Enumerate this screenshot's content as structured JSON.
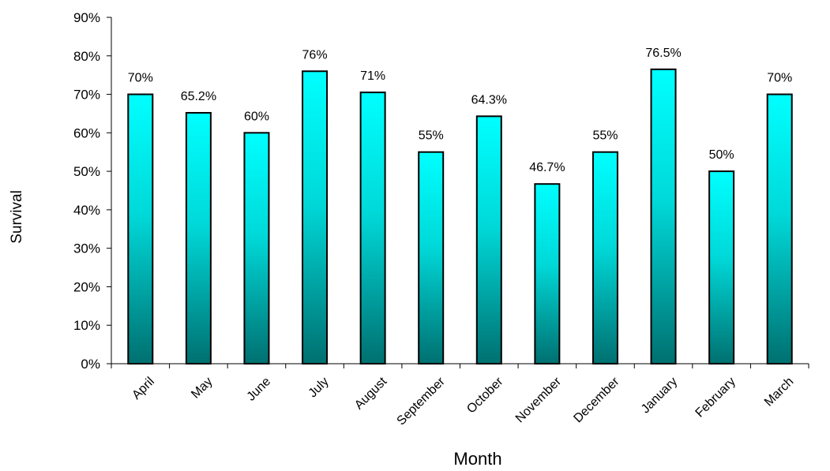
{
  "chart_data": {
    "type": "bar",
    "title": "",
    "xlabel": "Month",
    "ylabel": "Survival",
    "categories": [
      "April",
      "May",
      "June",
      "July",
      "August",
      "September",
      "October",
      "November",
      "December",
      "January",
      "February",
      "March"
    ],
    "values": [
      70,
      65.2,
      60,
      76,
      70.5,
      55,
      64.3,
      46.7,
      55,
      76.5,
      50,
      70
    ],
    "data_labels": [
      "70%",
      "65.2%",
      "60%",
      "76%",
      "71%",
      "55%",
      "64.3%",
      "46.7%",
      "55%",
      "76.5%",
      "50%",
      "70%"
    ],
    "ylim": [
      0,
      90
    ],
    "yticks": [
      0,
      10,
      20,
      30,
      40,
      50,
      60,
      70,
      80,
      90
    ],
    "ytick_labels": [
      "0%",
      "10%",
      "20%",
      "30%",
      "40%",
      "50%",
      "60%",
      "70%",
      "80%",
      "90%"
    ],
    "grid": false,
    "legend": "none",
    "colors": {
      "bar_top": "#00FFFF",
      "bar_bottom": "#007070",
      "bar_outline": "#000000",
      "axis": "#000000"
    }
  }
}
